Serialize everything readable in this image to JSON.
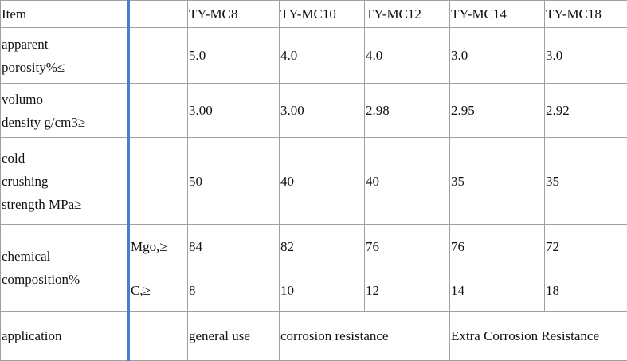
{
  "table": {
    "header": {
      "item": "Item",
      "grades": [
        "TY-MC8",
        "TY-MC10",
        "TY-MC12",
        "TY-MC14",
        "TY-MC18"
      ]
    },
    "rows": [
      {
        "label": "apparent\nporosity%≤",
        "values": [
          "5.0",
          "4.0",
          "4.0",
          "3.0",
          "3.0"
        ]
      },
      {
        "label": "volumo\ndensity g/cm3≥",
        "values": [
          "3.00",
          "3.00",
          "2.98",
          "2.95",
          "2.92"
        ]
      },
      {
        "label": "cold\ncrushing\nstrength MPa≥",
        "values": [
          "50",
          "40",
          "40",
          "35",
          "35"
        ]
      }
    ],
    "chemical": {
      "label": "chemical\ncomposition%",
      "subrows": [
        {
          "label": "Mgo,≥",
          "values": [
            "84",
            "82",
            "76",
            "76",
            "72"
          ]
        },
        {
          "label": "C,≥",
          "values": [
            "8",
            "10",
            "12",
            "14",
            "18"
          ]
        }
      ]
    },
    "application": {
      "label": "application",
      "values": [
        "general use",
        "corrosion resistance",
        "Extra Corrosion Resistance"
      ]
    }
  }
}
